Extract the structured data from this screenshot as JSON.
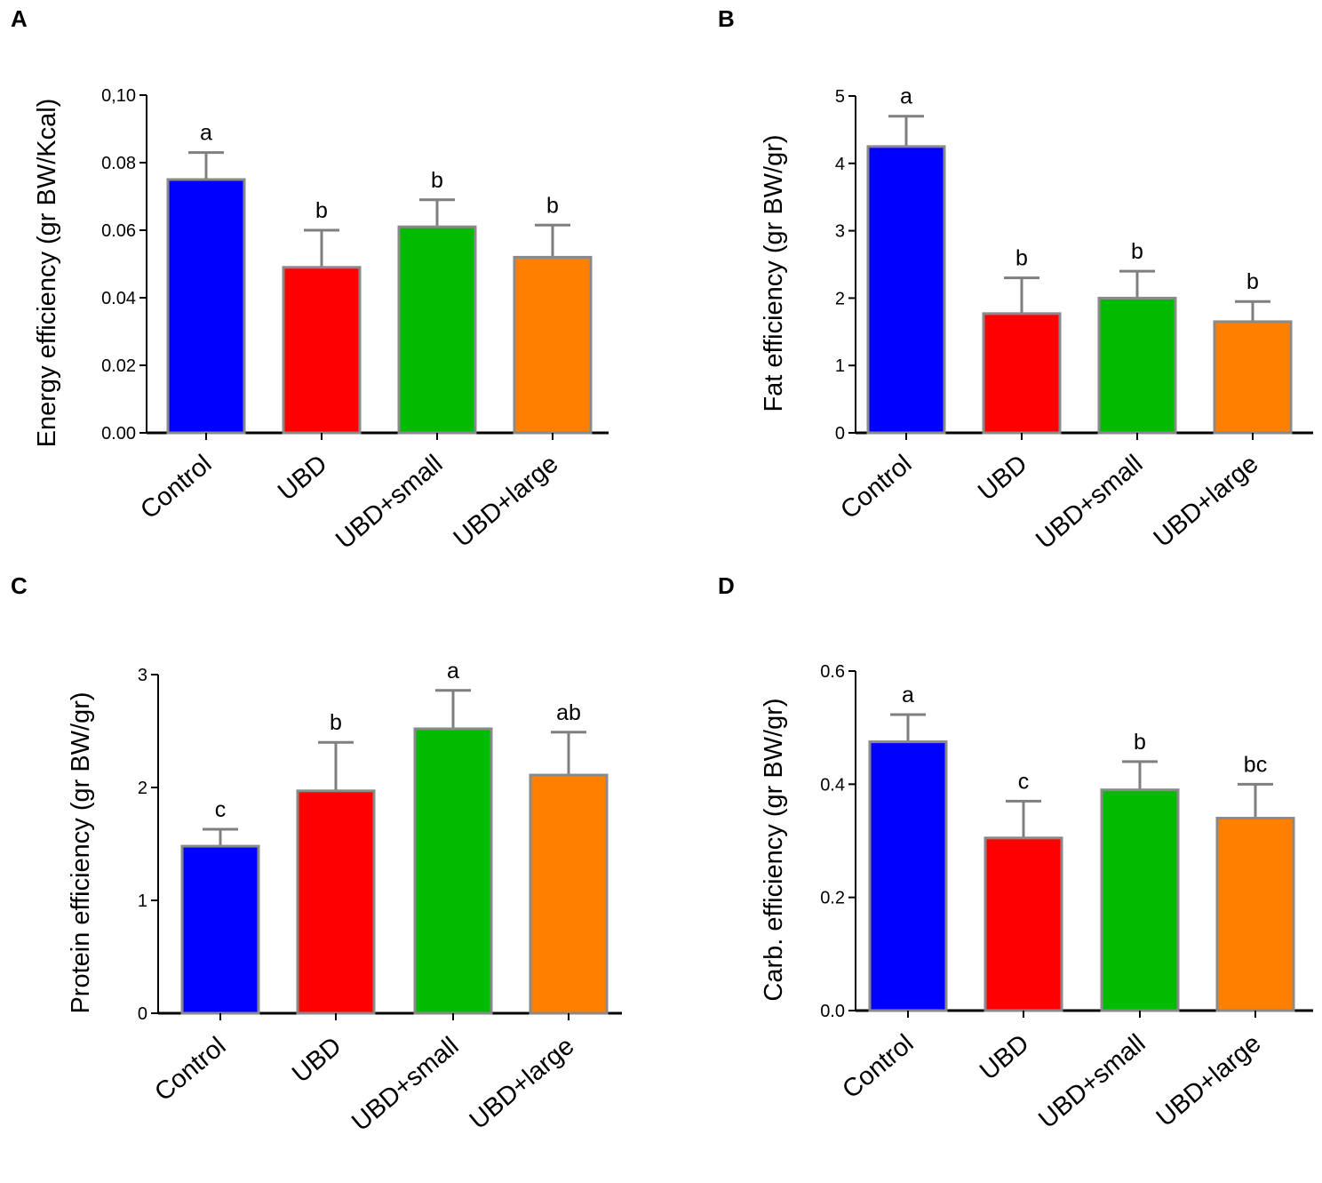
{
  "chart_data": [
    {
      "panel": "A",
      "type": "bar",
      "ylabel": "Energy efficiency (gr BW/Kcal)",
      "categories": [
        "Control",
        "UBD",
        "UBD+small",
        "UBD+large"
      ],
      "values": [
        0.075,
        0.049,
        0.061,
        0.052
      ],
      "errors": [
        0.008,
        0.011,
        0.008,
        0.0095
      ],
      "significance": [
        "a",
        "b",
        "b",
        "b"
      ],
      "colors": [
        "#0000ff",
        "#ff0000",
        "#00bb00",
        "#ff8000"
      ],
      "ylim": [
        0,
        0.1
      ],
      "yticks": [
        0,
        0.02,
        0.04,
        0.06,
        0.08,
        0.1
      ],
      "ytick_labels": [
        "0.00",
        "0.02",
        "0.04",
        "0.06",
        "0.08",
        "0,10"
      ]
    },
    {
      "panel": "B",
      "type": "bar",
      "ylabel": "Fat efficiency (gr BW/gr)",
      "categories": [
        "Control",
        "UBD",
        "UBD+small",
        "UBD+large"
      ],
      "values": [
        4.25,
        1.77,
        2.0,
        1.65
      ],
      "errors": [
        0.45,
        0.53,
        0.4,
        0.3
      ],
      "significance": [
        "a",
        "b",
        "b",
        "b"
      ],
      "colors": [
        "#0000ff",
        "#ff0000",
        "#00bb00",
        "#ff8000"
      ],
      "ylim": [
        0,
        5
      ],
      "yticks": [
        0,
        1,
        2,
        3,
        4,
        5
      ],
      "ytick_labels": [
        "0",
        "1",
        "2",
        "3",
        "4",
        "5"
      ]
    },
    {
      "panel": "C",
      "type": "bar",
      "ylabel": "Protein efficiency (gr BW/gr)",
      "categories": [
        "Control",
        "UBD",
        "UBD+small",
        "UBD+large"
      ],
      "values": [
        1.48,
        1.97,
        2.52,
        2.11
      ],
      "errors": [
        0.15,
        0.43,
        0.34,
        0.38
      ],
      "significance": [
        "c",
        "b",
        "a",
        "ab"
      ],
      "colors": [
        "#0000ff",
        "#ff0000",
        "#00bb00",
        "#ff8000"
      ],
      "ylim": [
        0,
        3
      ],
      "yticks": [
        0,
        1,
        2,
        3
      ],
      "ytick_labels": [
        "0",
        "1",
        "2",
        "3"
      ]
    },
    {
      "panel": "D",
      "type": "bar",
      "ylabel": "Carb. efficiency (gr BW/gr)",
      "categories": [
        "Control",
        "UBD",
        "UBD+small",
        "UBD+large"
      ],
      "values": [
        0.475,
        0.305,
        0.39,
        0.34
      ],
      "errors": [
        0.048,
        0.065,
        0.05,
        0.06
      ],
      "significance": [
        "a",
        "c",
        "b",
        "bc"
      ],
      "colors": [
        "#0000ff",
        "#ff0000",
        "#00bb00",
        "#ff8000"
      ],
      "ylim": [
        0,
        0.6
      ],
      "yticks": [
        0,
        0.2,
        0.4,
        0.6
      ],
      "ytick_labels": [
        "0.0",
        "0.2",
        "0.4",
        "0.6"
      ]
    }
  ]
}
